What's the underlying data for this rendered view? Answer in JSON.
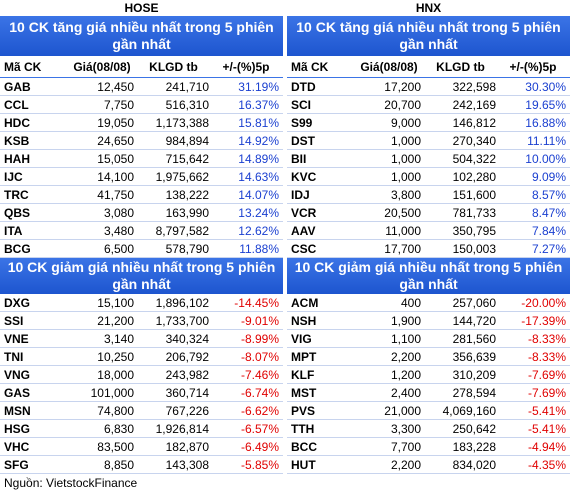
{
  "exchanges": [
    {
      "name": "HOSE",
      "columns": [
        "Mã CK",
        "Giá(08/08)",
        "KLGD tb",
        "+/-(%)5p"
      ],
      "gainers": {
        "title": "10 CK tăng giá nhiều nhất trong 5 phiên gần nhất",
        "rows": [
          [
            "GAB",
            "12,450",
            "241,710",
            "31.19%"
          ],
          [
            "CCL",
            "7,750",
            "516,310",
            "16.37%"
          ],
          [
            "HDC",
            "19,050",
            "1,173,388",
            "15.81%"
          ],
          [
            "KSB",
            "24,650",
            "984,894",
            "14.92%"
          ],
          [
            "HAH",
            "15,050",
            "715,642",
            "14.89%"
          ],
          [
            "IJC",
            "14,100",
            "1,975,662",
            "14.63%"
          ],
          [
            "TRC",
            "41,750",
            "138,222",
            "14.07%"
          ],
          [
            "QBS",
            "3,080",
            "163,990",
            "13.24%"
          ],
          [
            "ITA",
            "3,480",
            "8,797,582",
            "12.62%"
          ],
          [
            "BCG",
            "6,500",
            "578,790",
            "11.88%"
          ]
        ]
      },
      "losers": {
        "title": "10 CK giảm giá nhiều nhất trong 5 phiên gần nhất",
        "rows": [
          [
            "DXG",
            "15,100",
            "1,896,102",
            "-14.45%"
          ],
          [
            "SSI",
            "21,200",
            "1,733,700",
            "-9.01%"
          ],
          [
            "VNE",
            "3,140",
            "340,324",
            "-8.99%"
          ],
          [
            "TNI",
            "10,250",
            "206,792",
            "-8.07%"
          ],
          [
            "VNG",
            "18,000",
            "243,982",
            "-7.46%"
          ],
          [
            "GAS",
            "101,000",
            "360,714",
            "-6.74%"
          ],
          [
            "MSN",
            "74,800",
            "767,226",
            "-6.62%"
          ],
          [
            "HSG",
            "6,830",
            "1,926,814",
            "-6.57%"
          ],
          [
            "VHC",
            "83,500",
            "182,870",
            "-6.49%"
          ],
          [
            "SFG",
            "8,850",
            "143,308",
            "-5.85%"
          ]
        ]
      }
    },
    {
      "name": "HNX",
      "columns": [
        "Mã CK",
        "Giá(08/08)",
        "KLGD tb",
        "+/-(%)5p"
      ],
      "gainers": {
        "title": "10 CK tăng giá nhiều nhất trong 5 phiên gần nhất",
        "rows": [
          [
            "DTD",
            "17,200",
            "322,598",
            "30.30%"
          ],
          [
            "SCI",
            "20,700",
            "242,169",
            "19.65%"
          ],
          [
            "S99",
            "9,000",
            "146,812",
            "16.88%"
          ],
          [
            "DST",
            "1,000",
            "270,340",
            "11.11%"
          ],
          [
            "BII",
            "1,000",
            "504,322",
            "10.00%"
          ],
          [
            "KVC",
            "1,000",
            "102,280",
            "9.09%"
          ],
          [
            "IDJ",
            "3,800",
            "151,600",
            "8.57%"
          ],
          [
            "VCR",
            "20,500",
            "781,733",
            "8.47%"
          ],
          [
            "AAV",
            "11,000",
            "350,795",
            "7.84%"
          ],
          [
            "CSC",
            "17,700",
            "150,003",
            "7.27%"
          ]
        ]
      },
      "losers": {
        "title": "10 CK giảm giá nhiều nhất trong 5 phiên gần nhất",
        "rows": [
          [
            "ACM",
            "400",
            "257,060",
            "-20.00%"
          ],
          [
            "NSH",
            "1,900",
            "144,720",
            "-17.39%"
          ],
          [
            "VIG",
            "1,100",
            "281,560",
            "-8.33%"
          ],
          [
            "MPT",
            "2,200",
            "356,639",
            "-8.33%"
          ],
          [
            "KLF",
            "1,200",
            "310,209",
            "-7.69%"
          ],
          [
            "MST",
            "2,400",
            "278,594",
            "-7.69%"
          ],
          [
            "PVS",
            "21,000",
            "4,069,160",
            "-5.41%"
          ],
          [
            "TTH",
            "3,300",
            "250,642",
            "-5.41%"
          ],
          [
            "BCC",
            "7,700",
            "183,228",
            "-4.94%"
          ],
          [
            "HUT",
            "2,200",
            "834,020",
            "-4.35%"
          ]
        ]
      }
    }
  ],
  "source": "Nguồn: VietstockFinance"
}
